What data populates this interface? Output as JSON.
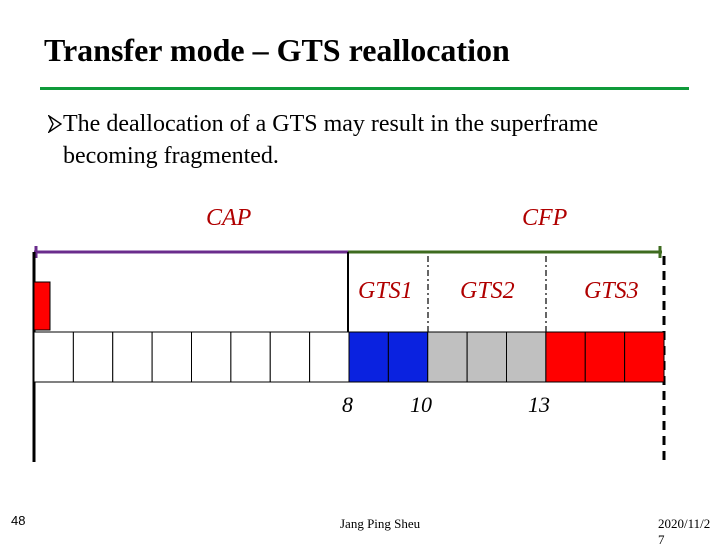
{
  "slide": {
    "title": "Transfer mode – GTS reallocation",
    "bullet": "The deallocation of a GTS may result in the superframe becoming fragmented.",
    "footer": {
      "page_number": "48",
      "author": "Jang Ping Sheu",
      "date": "2020/11/27"
    }
  },
  "diagram": {
    "period_labels": {
      "cap": "CAP",
      "cfp": "CFP"
    },
    "gts_labels": {
      "gts1": "GTS1",
      "gts2": "GTS2",
      "gts3": "GTS3"
    },
    "slot_numbers": {
      "n8": "8",
      "n10": "10",
      "n13": "13"
    },
    "total_slots": 16,
    "slot_fills": [
      "empty",
      "empty",
      "empty",
      "empty",
      "empty",
      "empty",
      "empty",
      "empty",
      "gts1",
      "gts1",
      "gts2",
      "gts2",
      "gts2",
      "gts3",
      "gts3",
      "gts3"
    ],
    "colors": {
      "title_rule": "#0f9a3a",
      "cap_line": "#6a2c8c",
      "cfp_line": "#3e6b1f",
      "gts1": "#0a22e0",
      "gts2": "#c0c0c0",
      "gts3": "#ff0000",
      "beacon": "#ff0000",
      "labels": "#b00000"
    }
  }
}
